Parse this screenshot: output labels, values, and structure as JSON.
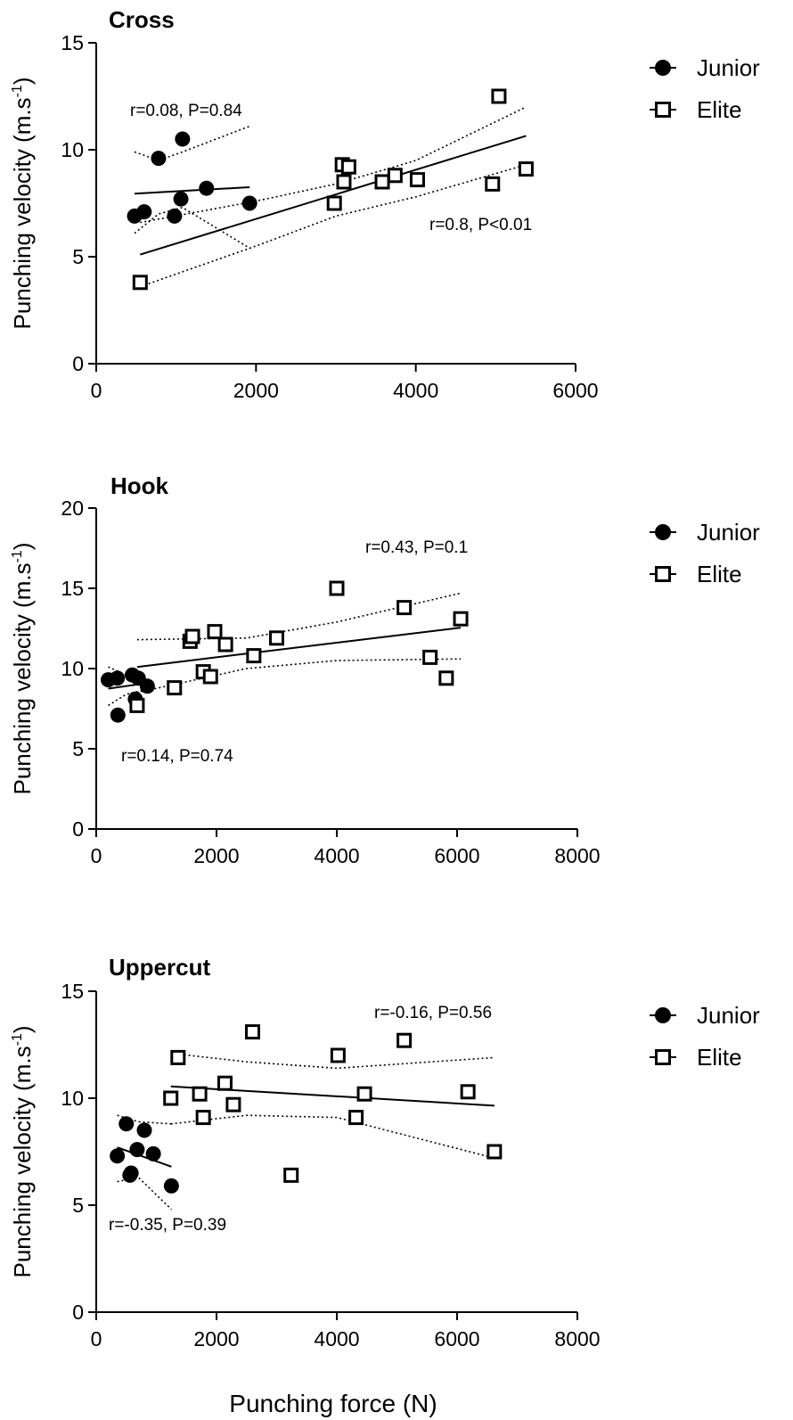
{
  "chart_data": [
    {
      "type": "scatter",
      "title": "Cross",
      "ylabel": "Punching velocity (m.s",
      "ylabel_sup": "-1",
      "ylabel_end": ")",
      "xlabel": "",
      "xlim": [
        0,
        6000
      ],
      "ylim": [
        0,
        15
      ],
      "xticks": [
        0,
        2000,
        4000,
        6000
      ],
      "yticks": [
        0,
        5,
        10,
        15
      ],
      "grid": false,
      "legend_position": "right",
      "series": [
        {
          "name": "Junior",
          "marker": "filled-circle",
          "points": [
            [
              480,
              6.9
            ],
            [
              600,
              7.1
            ],
            [
              780,
              9.6
            ],
            [
              980,
              6.9
            ],
            [
              1060,
              7.7
            ],
            [
              1080,
              10.5
            ],
            [
              1380,
              8.2
            ],
            [
              1920,
              7.5
            ]
          ],
          "fit": [
            [
              480,
              7.95
            ],
            [
              1920,
              8.25
            ]
          ],
          "band_upper": [
            [
              480,
              9.9
            ],
            [
              780,
              9.5
            ],
            [
              1080,
              9.9
            ],
            [
              1920,
              11.1
            ]
          ],
          "band_lower": [
            [
              480,
              6.1
            ],
            [
              780,
              7.0
            ],
            [
              1080,
              7.3
            ],
            [
              1920,
              5.4
            ]
          ],
          "annotation": "r=0.08, P=0.84"
        },
        {
          "name": "Elite",
          "marker": "open-square",
          "points": [
            [
              550,
              3.8
            ],
            [
              2980,
              7.5
            ],
            [
              3080,
              9.3
            ],
            [
              3100,
              8.5
            ],
            [
              3160,
              9.2
            ],
            [
              3580,
              8.5
            ],
            [
              3740,
              8.8
            ],
            [
              4020,
              8.6
            ],
            [
              4960,
              8.4
            ],
            [
              5040,
              12.5
            ],
            [
              5380,
              9.1
            ]
          ],
          "fit": [
            [
              550,
              5.1
            ],
            [
              5380,
              10.65
            ]
          ],
          "band_upper": [
            [
              550,
              6.6
            ],
            [
              2000,
              7.6
            ],
            [
              3000,
              8.4
            ],
            [
              4000,
              9.5
            ],
            [
              5380,
              12.0
            ]
          ],
          "band_lower": [
            [
              550,
              3.6
            ],
            [
              2000,
              5.5
            ],
            [
              3000,
              6.9
            ],
            [
              4000,
              7.8
            ],
            [
              5380,
              9.3
            ]
          ],
          "annotation": "r=0.8, P<0.01"
        }
      ]
    },
    {
      "type": "scatter",
      "title": "Hook",
      "ylabel": "Punching velocity (m.s",
      "ylabel_sup": "-1",
      "ylabel_end": ")",
      "xlabel": "",
      "xlim": [
        0,
        8000
      ],
      "ylim": [
        0,
        20
      ],
      "xticks": [
        0,
        2000,
        4000,
        6000,
        8000
      ],
      "yticks": [
        0,
        5,
        10,
        15,
        20
      ],
      "grid": false,
      "legend_position": "right",
      "series": [
        {
          "name": "Junior",
          "marker": "filled-circle",
          "points": [
            [
              200,
              9.3
            ],
            [
              350,
              9.4
            ],
            [
              360,
              7.1
            ],
            [
              600,
              9.6
            ],
            [
              650,
              8.1
            ],
            [
              700,
              9.4
            ],
            [
              850,
              8.9
            ]
          ],
          "fit": [
            [
              200,
              8.75
            ],
            [
              850,
              9.1
            ]
          ],
          "band_upper": [
            [
              200,
              10.1
            ],
            [
              500,
              9.6
            ],
            [
              850,
              9.3
            ]
          ],
          "band_lower": [
            [
              200,
              7.7
            ],
            [
              500,
              8.4
            ],
            [
              850,
              8.7
            ]
          ],
          "annotation": "r=0.14, P=0.74"
        },
        {
          "name": "Elite",
          "marker": "open-square",
          "points": [
            [
              680,
              7.7
            ],
            [
              1300,
              8.8
            ],
            [
              1560,
              11.7
            ],
            [
              1600,
              12.0
            ],
            [
              1780,
              9.8
            ],
            [
              1900,
              9.5
            ],
            [
              1970,
              12.3
            ],
            [
              2150,
              11.5
            ],
            [
              2620,
              10.8
            ],
            [
              3000,
              11.9
            ],
            [
              4000,
              15.0
            ],
            [
              5120,
              13.8
            ],
            [
              5550,
              10.7
            ],
            [
              5820,
              9.4
            ],
            [
              6060,
              13.1
            ]
          ],
          "fit": [
            [
              680,
              10.1
            ],
            [
              6060,
              12.55
            ]
          ],
          "band_upper": [
            [
              680,
              11.8
            ],
            [
              2500,
              11.9
            ],
            [
              4000,
              12.9
            ],
            [
              6060,
              14.7
            ]
          ],
          "band_lower": [
            [
              680,
              8.5
            ],
            [
              2500,
              10.0
            ],
            [
              4000,
              10.5
            ],
            [
              6060,
              10.6
            ]
          ],
          "annotation": "r=0.43, P=0.1"
        }
      ]
    },
    {
      "type": "scatter",
      "title": "Uppercut",
      "ylabel": "Punching velocity (m.s",
      "ylabel_sup": "-1",
      "ylabel_end": ")",
      "xlabel": "Punching force (N)",
      "xlim": [
        0,
        8000
      ],
      "ylim": [
        0,
        15
      ],
      "xticks": [
        0,
        2000,
        4000,
        6000,
        8000
      ],
      "yticks": [
        0,
        5,
        10,
        15
      ],
      "grid": false,
      "legend_position": "right",
      "series": [
        {
          "name": "Junior",
          "marker": "filled-circle",
          "points": [
            [
              350,
              7.3
            ],
            [
              500,
              8.8
            ],
            [
              560,
              6.4
            ],
            [
              580,
              6.5
            ],
            [
              680,
              7.6
            ],
            [
              800,
              8.5
            ],
            [
              950,
              7.4
            ],
            [
              1250,
              5.9
            ]
          ],
          "fit": [
            [
              350,
              7.7
            ],
            [
              1250,
              6.8
            ]
          ],
          "band_upper": [
            [
              350,
              9.2
            ],
            [
              700,
              8.9
            ],
            [
              1250,
              8.8
            ]
          ],
          "band_lower": [
            [
              350,
              6.1
            ],
            [
              700,
              6.3
            ],
            [
              1250,
              4.8
            ]
          ],
          "annotation": "r=-0.35, P=0.39"
        },
        {
          "name": "Elite",
          "marker": "open-square",
          "points": [
            [
              1240,
              10.0
            ],
            [
              1360,
              11.9
            ],
            [
              1720,
              10.2
            ],
            [
              1780,
              9.1
            ],
            [
              2140,
              10.7
            ],
            [
              2280,
              9.7
            ],
            [
              2600,
              13.1
            ],
            [
              3240,
              6.4
            ],
            [
              4020,
              12.0
            ],
            [
              4320,
              9.1
            ],
            [
              4460,
              10.2
            ],
            [
              5120,
              12.7
            ],
            [
              6180,
              10.3
            ],
            [
              6620,
              7.5
            ]
          ],
          "fit": [
            [
              1240,
              10.55
            ],
            [
              6620,
              9.65
            ]
          ],
          "band_upper": [
            [
              1240,
              12.1
            ],
            [
              2500,
              11.7
            ],
            [
              4000,
              11.4
            ],
            [
              6620,
              11.9
            ]
          ],
          "band_lower": [
            [
              1240,
              8.8
            ],
            [
              2500,
              9.2
            ],
            [
              4000,
              9.1
            ],
            [
              6620,
              7.2
            ]
          ],
          "annotation": "r=-0.16, P=0.56"
        }
      ]
    }
  ]
}
